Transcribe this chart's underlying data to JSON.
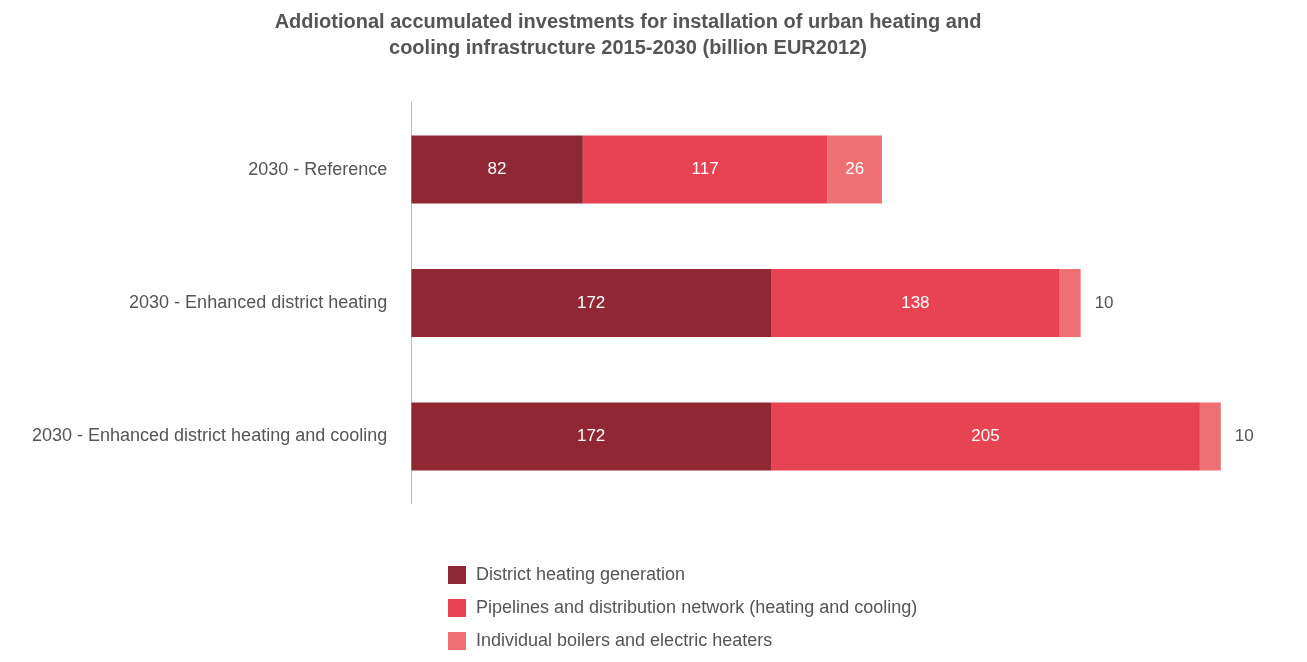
{
  "chart_data": {
    "type": "bar",
    "orientation": "horizontal",
    "stacked": true,
    "data_labels": true,
    "legend": "bottom",
    "grid": false,
    "title": "Addiotional accumulated investments for installation of urban heating and cooling infrastructure 2015-2030 (billion EUR2012)",
    "categories": [
      "2030 - Reference",
      "2030 - Enhanced district heating",
      "2030 - Enhanced district heating and cooling"
    ],
    "series": [
      {
        "name": "District heating generation",
        "color": "#8f2832",
        "values": [
          82,
          172,
          172
        ]
      },
      {
        "name": "Pipelines and distribution network (heating and cooling)",
        "color": "#e84352",
        "values": [
          117,
          138,
          205
        ]
      },
      {
        "name": "Individual boilers and electric heaters",
        "color": "#ee7072",
        "values": [
          26,
          10,
          10
        ]
      }
    ]
  }
}
